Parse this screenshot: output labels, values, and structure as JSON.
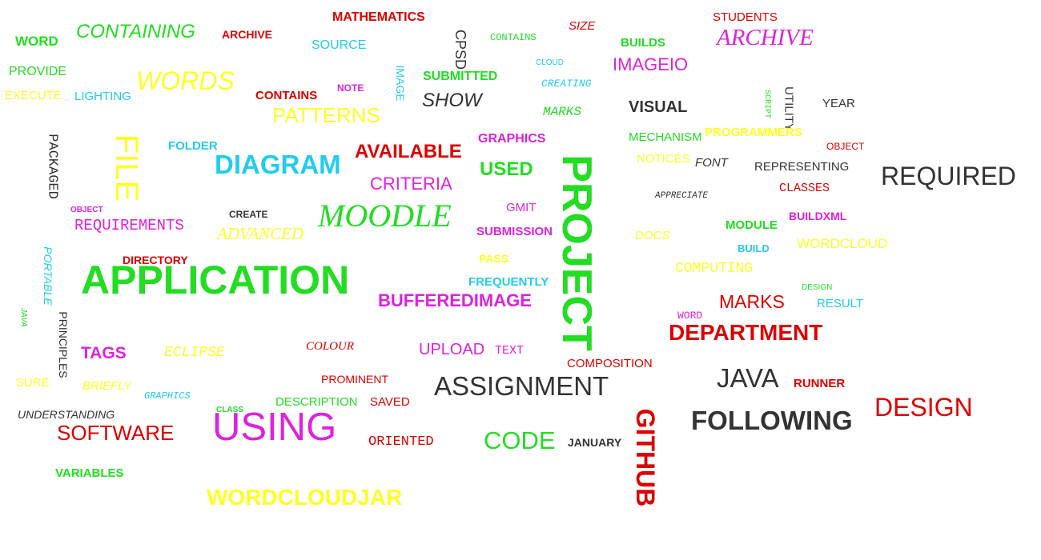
{
  "colors": {
    "green": "#22dd22",
    "red": "#dd0000",
    "yellow": "#ffff22",
    "pale_yellow": "#ffe066",
    "cyan": "#22ccee",
    "magenta": "#dd22dd",
    "gray": "#333333"
  },
  "words": [
    {
      "text": "MATHEMATICS",
      "color": "red"
    },
    {
      "text": "WORD",
      "color": "green"
    },
    {
      "text": "CONTAINING",
      "color": "green"
    },
    {
      "text": "ARCHIVE",
      "color": "red"
    },
    {
      "text": "SOURCE",
      "color": "cyan"
    },
    {
      "text": "CPSD",
      "color": "gray"
    },
    {
      "text": "CONTAINS",
      "color": "green"
    },
    {
      "text": "SIZE",
      "color": "red"
    },
    {
      "text": "BUILDS",
      "color": "green"
    },
    {
      "text": "STUDENTS",
      "color": "red"
    },
    {
      "text": "ARCHIVE",
      "color": "magenta"
    },
    {
      "text": "PROVIDE",
      "color": "green"
    },
    {
      "text": "WORDS",
      "color": "yellow"
    },
    {
      "text": "IMAGE",
      "color": "cyan"
    },
    {
      "text": "SUBMITTED",
      "color": "green"
    },
    {
      "text": "CLOUD",
      "color": "cyan"
    },
    {
      "text": "IMAGEIO",
      "color": "magenta"
    },
    {
      "text": "EXECUTE",
      "color": "yellow"
    },
    {
      "text": "LIGHTING",
      "color": "cyan"
    },
    {
      "text": "CONTAINS",
      "color": "red"
    },
    {
      "text": "NOTE",
      "color": "magenta"
    },
    {
      "text": "SHOW",
      "color": "gray"
    },
    {
      "text": "CREATING",
      "color": "cyan"
    },
    {
      "text": "SCRIPT",
      "color": "green"
    },
    {
      "text": "UTILITY",
      "color": "gray"
    },
    {
      "text": "YEAR",
      "color": "gray"
    },
    {
      "text": "PATTERNS",
      "color": "yellow"
    },
    {
      "text": "MARKS",
      "color": "green"
    },
    {
      "text": "VISUAL",
      "color": "gray"
    },
    {
      "text": "PACKAGED",
      "color": "gray"
    },
    {
      "text": "FILE",
      "color": "yellow"
    },
    {
      "text": "GRAPHICS",
      "color": "magenta"
    },
    {
      "text": "MECHANISM",
      "color": "green"
    },
    {
      "text": "PROGRAMMERS",
      "color": "yellow"
    },
    {
      "text": "FOLDER",
      "color": "cyan"
    },
    {
      "text": "AVAILABLE",
      "color": "red"
    },
    {
      "text": "OBJECT",
      "color": "red"
    },
    {
      "text": "DIAGRAM",
      "color": "cyan"
    },
    {
      "text": "USED",
      "color": "green"
    },
    {
      "text": "NOTICES",
      "color": "yellow"
    },
    {
      "text": "FONT",
      "color": "gray"
    },
    {
      "text": "REPRESENTING",
      "color": "gray"
    },
    {
      "text": "PROJECT",
      "color": "green"
    },
    {
      "text": "REQUIRED",
      "color": "gray"
    },
    {
      "text": "CRITERIA",
      "color": "magenta"
    },
    {
      "text": "CLASSES",
      "color": "red"
    },
    {
      "text": "APPRECIATE",
      "color": "gray"
    },
    {
      "text": "OBJECT",
      "color": "magenta"
    },
    {
      "text": "CREATE",
      "color": "gray"
    },
    {
      "text": "MOODLE",
      "color": "green"
    },
    {
      "text": "GMIT",
      "color": "magenta"
    },
    {
      "text": "BUILDXML",
      "color": "magenta"
    },
    {
      "text": "REQUIREMENTS",
      "color": "magenta"
    },
    {
      "text": "MODULE",
      "color": "green"
    },
    {
      "text": "ADVANCED",
      "color": "yellow"
    },
    {
      "text": "SUBMISSION",
      "color": "magenta"
    },
    {
      "text": "DOCS",
      "color": "yellow"
    },
    {
      "text": "WORDCLOUD",
      "color": "yellow"
    },
    {
      "text": "BUILD",
      "color": "cyan"
    },
    {
      "text": "PORTABLE",
      "color": "cyan"
    },
    {
      "text": "DIRECTORY",
      "color": "red"
    },
    {
      "text": "PASS",
      "color": "yellow"
    },
    {
      "text": "COMPUTING",
      "color": "yellow"
    },
    {
      "text": "APPLICATION",
      "color": "green"
    },
    {
      "text": "FREQUENTLY",
      "color": "cyan"
    },
    {
      "text": "DESIGN",
      "color": "green"
    },
    {
      "text": "BUFFEREDIMAGE",
      "color": "magenta"
    },
    {
      "text": "MARKS",
      "color": "red"
    },
    {
      "text": "RESULT",
      "color": "cyan"
    },
    {
      "text": "JAVA",
      "color": "green"
    },
    {
      "text": "WORD",
      "color": "magenta"
    },
    {
      "text": "PRINCIPLES",
      "color": "gray"
    },
    {
      "text": "DEPARTMENT",
      "color": "red"
    },
    {
      "text": "TAGS",
      "color": "magenta"
    },
    {
      "text": "ECLIPSE",
      "color": "yellow"
    },
    {
      "text": "COLOUR",
      "color": "red"
    },
    {
      "text": "UPLOAD",
      "color": "magenta"
    },
    {
      "text": "TEXT",
      "color": "magenta"
    },
    {
      "text": "COMPOSITION",
      "color": "red"
    },
    {
      "text": "JAVA",
      "color": "gray"
    },
    {
      "text": "SURE",
      "color": "yellow"
    },
    {
      "text": "PROMINENT",
      "color": "red"
    },
    {
      "text": "BRIEFLY",
      "color": "yellow"
    },
    {
      "text": "ASSIGNMENT",
      "color": "gray"
    },
    {
      "text": "RUNNER",
      "color": "red"
    },
    {
      "text": "GRAPHICS",
      "color": "cyan"
    },
    {
      "text": "DESCRIPTION",
      "color": "green"
    },
    {
      "text": "SAVED",
      "color": "red"
    },
    {
      "text": "DESIGN",
      "color": "red"
    },
    {
      "text": "CLASS",
      "color": "green"
    },
    {
      "text": "UNDERSTANDING",
      "color": "gray"
    },
    {
      "text": "GITHUB",
      "color": "red"
    },
    {
      "text": "FOLLOWING",
      "color": "gray"
    },
    {
      "text": "USING",
      "color": "magenta"
    },
    {
      "text": "SOFTWARE",
      "color": "red"
    },
    {
      "text": "ORIENTED",
      "color": "red"
    },
    {
      "text": "CODE",
      "color": "green"
    },
    {
      "text": "JANUARY",
      "color": "gray"
    },
    {
      "text": "VARIABLES",
      "color": "green"
    },
    {
      "text": "WORDCLOUDJAR",
      "color": "yellow"
    }
  ]
}
